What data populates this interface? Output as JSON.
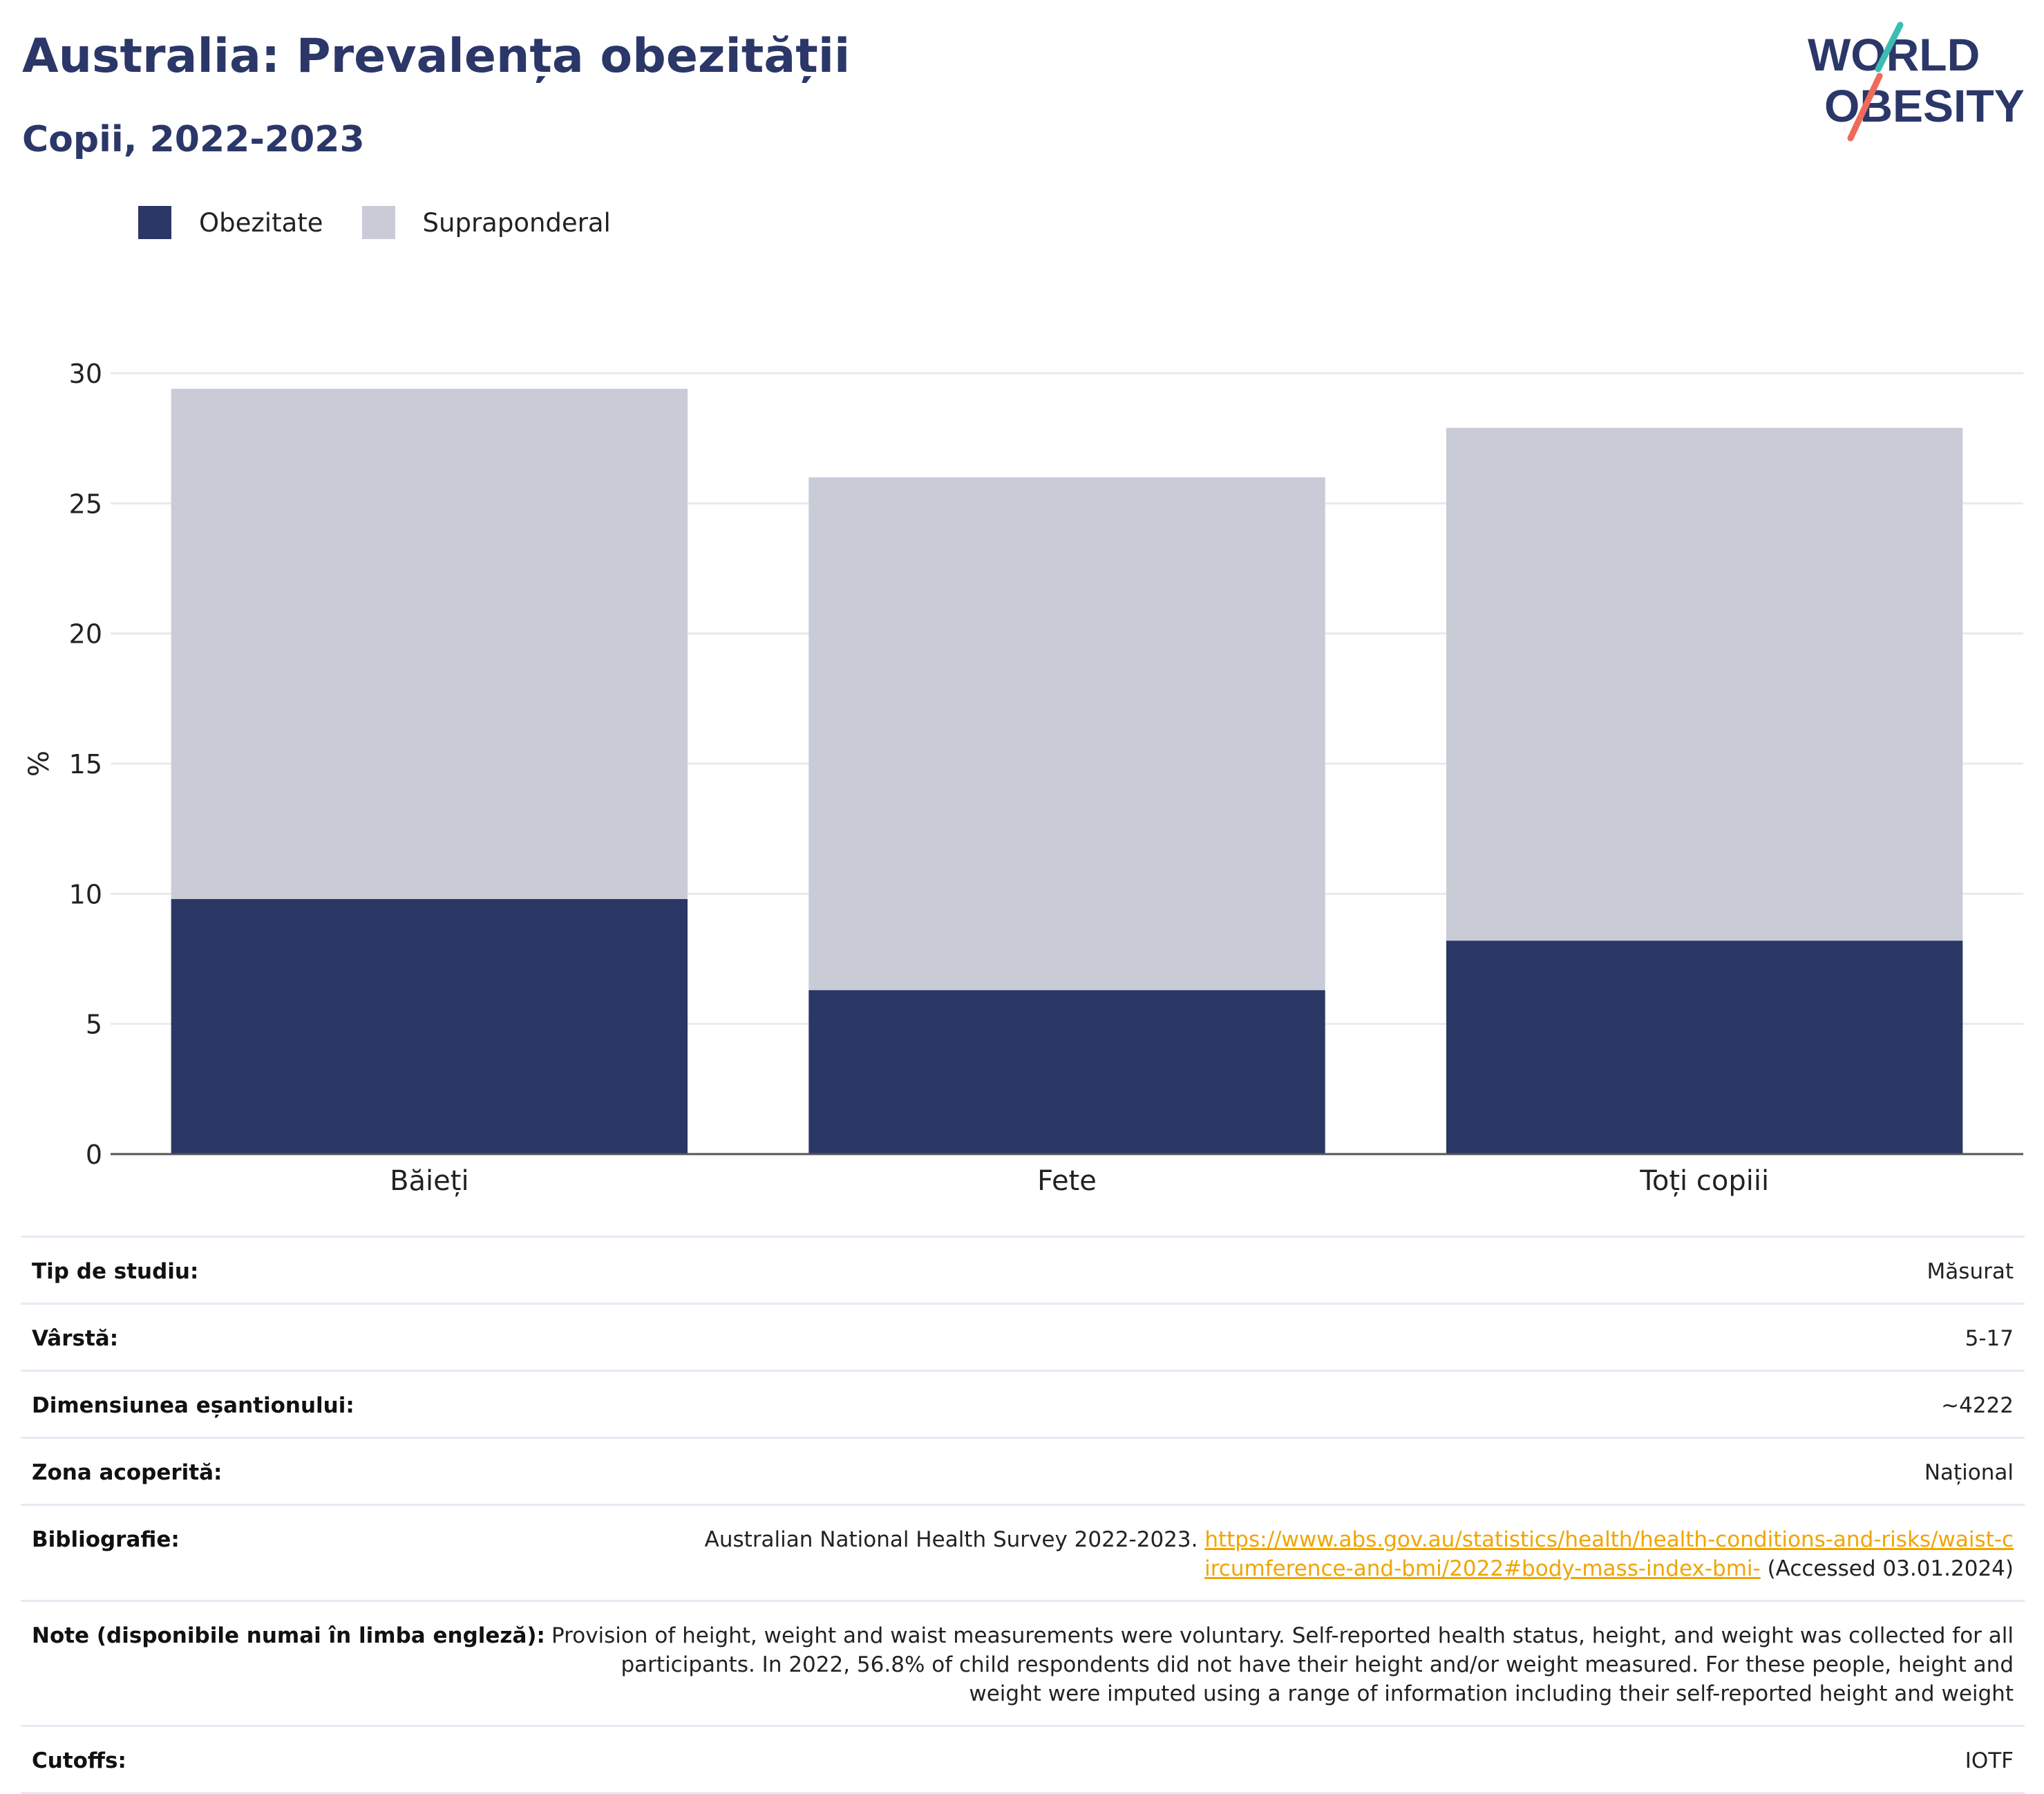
{
  "header": {
    "title": "Australia: Prevalența obezității",
    "subtitle": "Copii, 2022-2023"
  },
  "logo": {
    "line1": "WORLD",
    "line2": "OBESITY"
  },
  "legend": [
    {
      "label": "Obezitate",
      "color": "#2b3765"
    },
    {
      "label": "Supraponderal",
      "color": "#c9cbd7"
    }
  ],
  "chart_data": {
    "type": "bar",
    "stacked": true,
    "categories": [
      "Băieți",
      "Fete",
      "Toți copiii"
    ],
    "series": [
      {
        "name": "Obezitate",
        "color": "#2b3765",
        "values": [
          9.8,
          6.3,
          8.2
        ]
      },
      {
        "name": "Supraponderal",
        "color": "#c9cbd7",
        "values": [
          19.6,
          19.7,
          19.7
        ]
      }
    ],
    "ylabel": "%",
    "ylim": [
      0,
      30
    ],
    "yticks": [
      0,
      5,
      10,
      15,
      20,
      25,
      30
    ],
    "grid": true,
    "legend_position": "top-left"
  },
  "table": {
    "rows": [
      {
        "key": "Tip de studiu:",
        "value": "Măsurat"
      },
      {
        "key": "Vârstă:",
        "value": "5-17"
      },
      {
        "key": "Dimensiunea eșantionului:",
        "value": "~4222"
      },
      {
        "key": "Zona acoperită:",
        "value": "Național"
      }
    ],
    "bibliography": {
      "key": "Bibliografie:",
      "text_before": "Australian National Health Survey 2022-2023.",
      "link": "https://www.abs.gov.au/statistics/health/health-conditions-and-risks/waist-circumference-and-bmi/2022#body-mass-index-bmi-",
      "text_after": "(Accessed 03.01.2024)"
    },
    "notes": {
      "key": "Note (disponibile numai în limba engleză):",
      "value": "Provision of height, weight and waist measurements were voluntary. Self-reported health status, height, and weight was collected for all participants. In 2022, 56.8% of child respondents did not have their height and/or weight measured. For these people, height and weight were imputed using a range of information including their self-reported height and weight"
    },
    "cutoffs": {
      "key": "Cutoffs:",
      "value": "IOTF"
    }
  }
}
